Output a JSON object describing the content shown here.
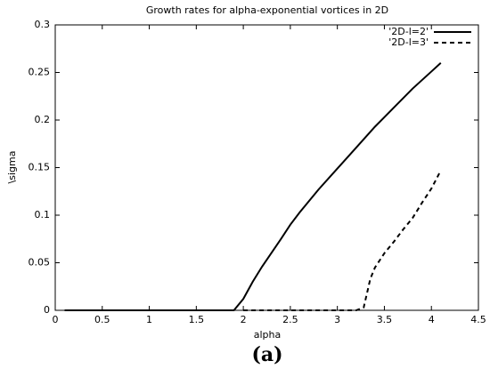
{
  "chart_data": {
    "type": "line",
    "title": "Growth rates for alpha-exponential vortices in 2D",
    "xlabel": "alpha",
    "ylabel": "\\sigma",
    "caption": "(a)",
    "xlim": [
      0,
      4.5
    ],
    "xticks": [
      0,
      0.5,
      1,
      1.5,
      2,
      2.5,
      3,
      3.5,
      4,
      4.5
    ],
    "ylim": [
      0,
      0.3
    ],
    "yticks": [
      0,
      0.05,
      0.1,
      0.15,
      0.2,
      0.25,
      0.3
    ],
    "legend": "top-right",
    "series": [
      {
        "name": "'2D-l=2'",
        "color": "#000000",
        "style": "solid",
        "x": [
          0.1,
          1.9,
          2.0,
          2.1,
          2.2,
          2.4,
          2.5,
          2.6,
          2.8,
          3.0,
          3.2,
          3.4,
          3.5,
          3.6,
          3.8,
          4.0,
          4.1
        ],
        "values": [
          0,
          0,
          0.012,
          0.03,
          0.046,
          0.075,
          0.09,
          0.103,
          0.127,
          0.149,
          0.171,
          0.193,
          0.203,
          0.213,
          0.233,
          0.251,
          0.26
        ]
      },
      {
        "name": "'2D-l=3'",
        "color": "#000000",
        "style": "dashed",
        "x": [
          2.0,
          3.2,
          3.28,
          3.32,
          3.35,
          3.4,
          3.5,
          3.6,
          3.7,
          3.8,
          3.9,
          4.0,
          4.1
        ],
        "values": [
          0,
          0,
          0.003,
          0.02,
          0.033,
          0.045,
          0.06,
          0.072,
          0.085,
          0.097,
          0.113,
          0.128,
          0.147
        ]
      }
    ]
  }
}
